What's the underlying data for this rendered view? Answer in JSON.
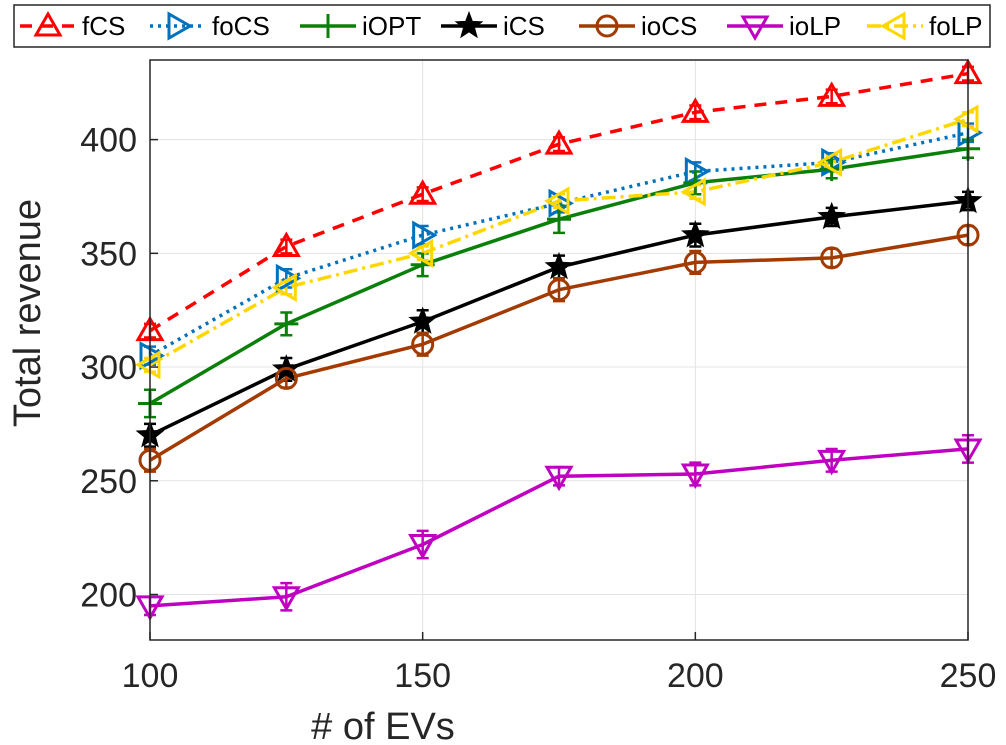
{
  "chart_data": {
    "type": "line",
    "xlabel": "# of EVs",
    "ylabel": "Total revenue",
    "x": [
      100,
      125,
      150,
      175,
      200,
      225,
      250
    ],
    "xlim": [
      100,
      250
    ],
    "ylim": [
      180,
      435
    ],
    "xticks": [
      100,
      150,
      200,
      250
    ],
    "yticks": [
      200,
      250,
      300,
      350,
      400
    ],
    "grid": true,
    "legend_position": "top",
    "series": [
      {
        "name": "fCS",
        "values": [
          316,
          353,
          376,
          398,
          412,
          419,
          429
        ],
        "err": [
          3,
          3,
          3,
          3,
          3,
          3,
          3
        ],
        "color": "#ff0000",
        "dash": "12,9",
        "marker": "triangle-up"
      },
      {
        "name": "foCS",
        "values": [
          305,
          339,
          358,
          372,
          386,
          390,
          403
        ],
        "err": [
          4,
          4,
          4,
          4,
          4,
          4,
          4
        ],
        "color": "#0072bd",
        "dash": "3,5",
        "marker": "triangle-right"
      },
      {
        "name": "iOPT",
        "values": [
          284,
          319,
          345,
          365,
          381,
          387,
          396
        ],
        "err": [
          6,
          5,
          5,
          6,
          5,
          4,
          4
        ],
        "color": "#0a800a",
        "dash": "",
        "marker": "plus"
      },
      {
        "name": "iCS",
        "values": [
          270,
          299,
          320,
          344,
          358,
          366,
          373
        ],
        "err": [
          5,
          5,
          5,
          5,
          5,
          4,
          4
        ],
        "color": "#000000",
        "dash": "",
        "marker": "star"
      },
      {
        "name": "ioCS",
        "values": [
          259,
          295,
          310,
          334,
          346,
          348,
          358
        ],
        "err": [
          5,
          4,
          5,
          5,
          5,
          4,
          4
        ],
        "color": "#a33a00",
        "dash": "",
        "marker": "circle"
      },
      {
        "name": "ioLP",
        "values": [
          195,
          199,
          222,
          252,
          253,
          259,
          264
        ],
        "err": [
          4,
          6,
          6,
          4,
          5,
          5,
          6
        ],
        "color": "#c000c0",
        "dash": "",
        "marker": "triangle-down"
      },
      {
        "name": "foLP",
        "values": [
          301,
          335,
          350,
          373,
          377,
          390,
          409
        ],
        "err": [
          3,
          3,
          3,
          3,
          3,
          3,
          3
        ],
        "color": "#ffd700",
        "dash": "14,5,3,5",
        "marker": "triangle-left"
      }
    ]
  }
}
